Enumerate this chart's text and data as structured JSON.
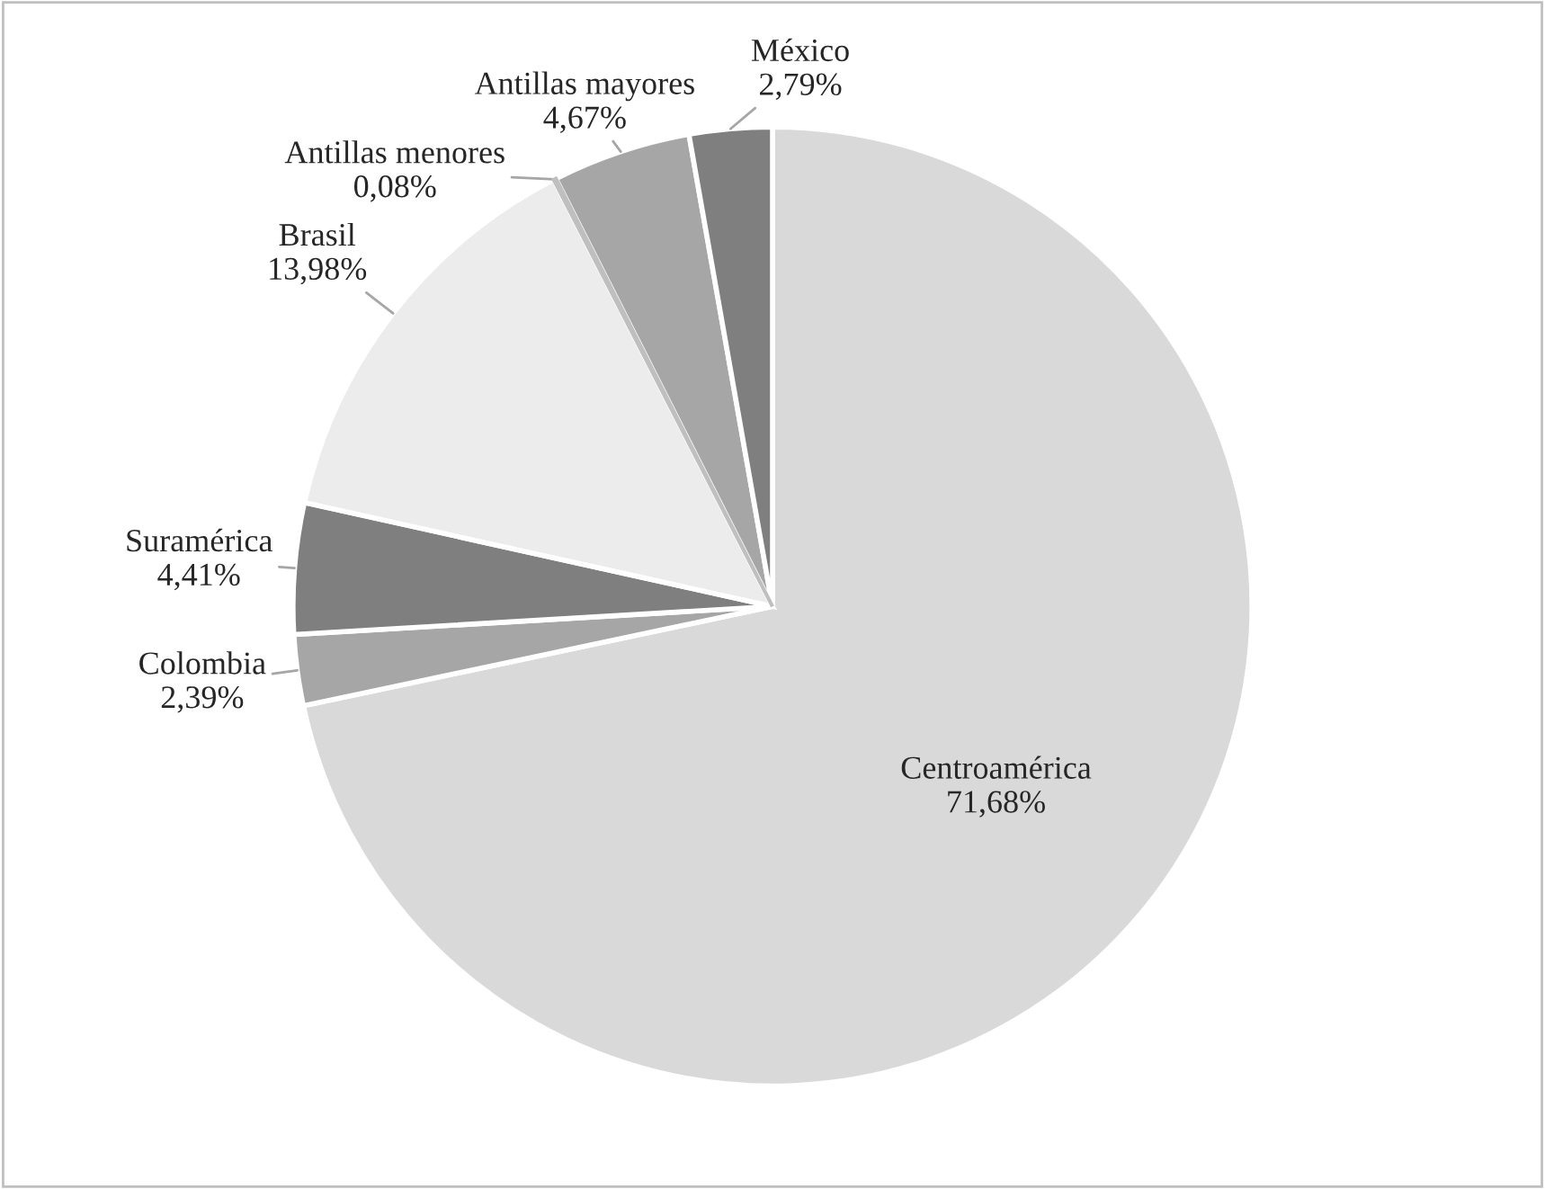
{
  "chart_data": {
    "type": "pie",
    "categories": [
      "Centroamérica",
      "Colombia",
      "Suramérica",
      "Brasil",
      "Antillas menores",
      "Antillas mayores",
      "México"
    ],
    "values": [
      71.68,
      2.39,
      4.41,
      13.98,
      0.08,
      4.67,
      2.79
    ],
    "value_labels": [
      "71,68%",
      "2,39%",
      "4,41%",
      "13,98%",
      "0,08%",
      "4,67%",
      "2,79%"
    ],
    "colors": [
      "#d9d9d9",
      "#a6a6a6",
      "#7f7f7f",
      "#ececec",
      "#bfbfbf",
      "#a6a6a6",
      "#7f7f7f"
    ],
    "legend": false
  }
}
